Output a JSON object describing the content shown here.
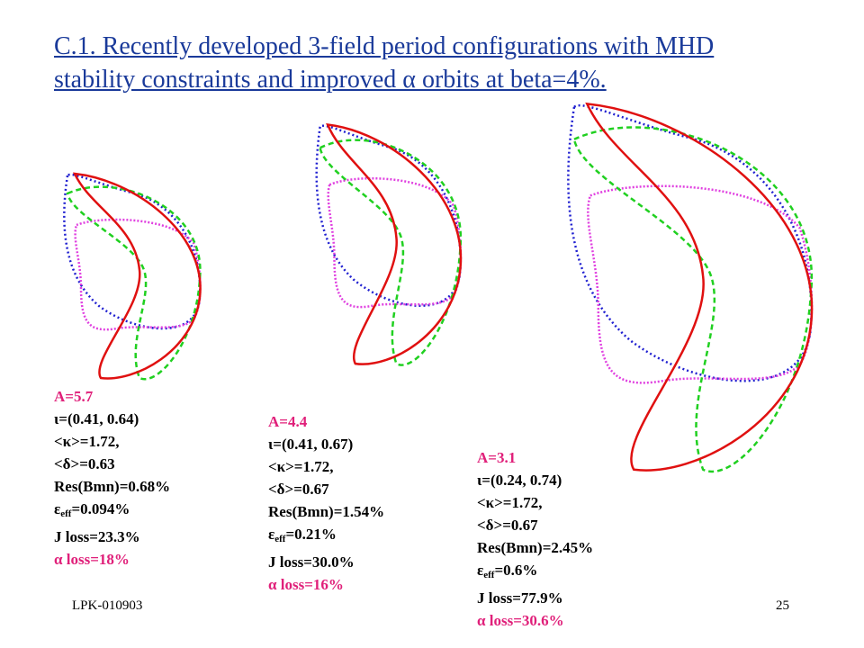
{
  "title": {
    "lines": [
      "C.1. Recently developed 3-field period configurations with MHD",
      "stability constraints and improved α orbits at beta=4%."
    ]
  },
  "panels": [
    {
      "aspect": "A=5.7",
      "iota": "ι=(0.41, 0.64)",
      "kappa": "<κ>=1.72,",
      "delta": "<δ>=0.63",
      "res": "Res(Bmn)=0.68%",
      "eps": {
        "symbol": "ε",
        "sub": "eff",
        "text": "=0.094%"
      },
      "jloss": "J loss=23.3%",
      "aloss": "α loss=18%"
    },
    {
      "aspect": "A=4.4",
      "iota": "ι=(0.41, 0.67)",
      "kappa": "<κ>=1.72,",
      "delta": "<δ>=0.67",
      "res": "Res(Bmn)=1.54%",
      "eps": {
        "symbol": "ε",
        "sub": "eff",
        "text": "=0.21%"
      },
      "jloss": "J loss=30.0%",
      "aloss": "α loss=16%"
    },
    {
      "aspect": "A=3.1",
      "iota": "ι=(0.24, 0.74)",
      "kappa": "<κ>=1.72,",
      "delta": "<δ>=0.67",
      "res": "Res(Bmn)=2.45%",
      "eps": {
        "symbol": "ε",
        "sub": "eff",
        "text": "=0.6%"
      },
      "jloss": "J loss=77.9%",
      "aloss": "α loss=30.6%"
    }
  ],
  "footer": {
    "left": "LPK-010903",
    "page": "25"
  }
}
